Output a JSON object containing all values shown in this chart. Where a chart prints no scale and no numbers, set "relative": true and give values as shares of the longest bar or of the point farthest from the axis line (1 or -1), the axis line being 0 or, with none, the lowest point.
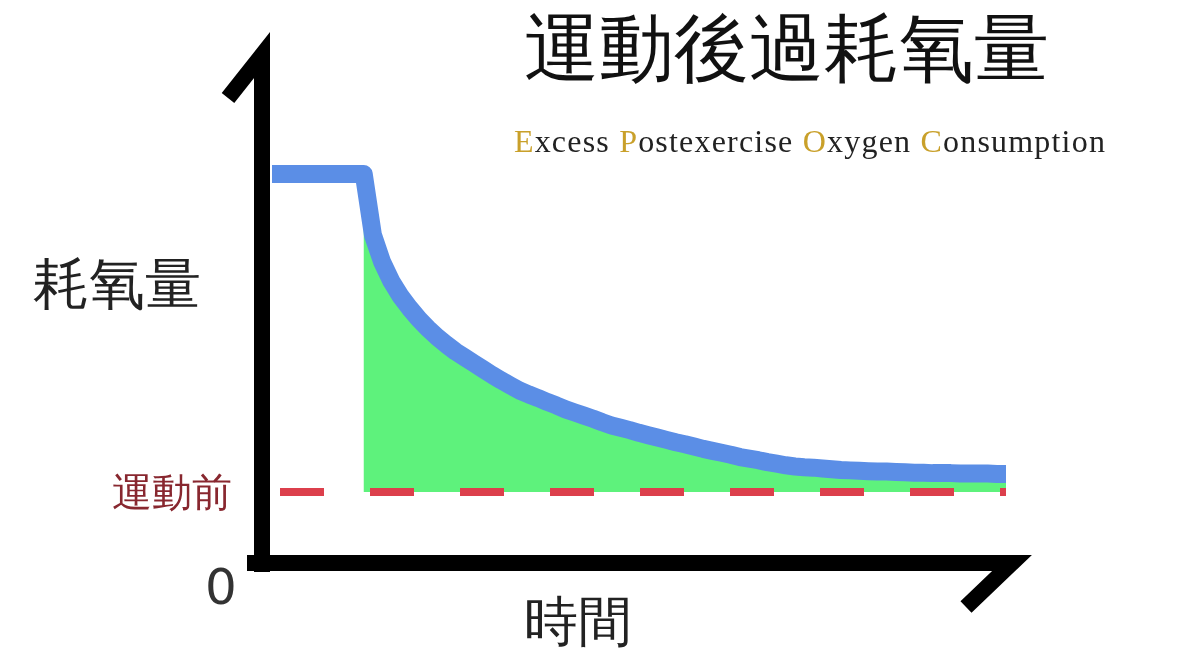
{
  "chart_data": {
    "type": "line",
    "title": "運動後過耗氧量",
    "subtitle": "Excess Postexercise Oxygen Consumption",
    "xlabel": "時間",
    "ylabel": "耗氧量",
    "relative": true,
    "annotations": [
      "0"
    ],
    "categories": [
      null,
      null,
      null,
      null,
      null,
      null,
      null,
      null,
      null,
      null,
      null,
      null,
      null,
      null,
      null,
      null,
      null,
      null,
      null,
      null,
      null,
      null,
      null,
      null,
      null,
      null,
      null,
      null,
      null,
      null,
      null,
      null,
      null,
      null,
      null,
      null,
      null,
      null,
      null,
      null,
      null,
      null,
      null,
      null,
      null,
      null,
      null,
      null,
      null,
      null,
      null,
      null,
      null,
      null,
      null,
      null,
      null,
      null,
      null,
      null,
      null,
      null,
      null,
      null,
      null,
      null,
      null,
      null,
      null,
      null,
      null,
      null,
      null,
      null,
      null,
      null,
      null,
      null,
      null,
      null,
      null
    ],
    "series": [
      {
        "type": "area",
        "color": "#5ef27c",
        "values": [
          null,
          null,
          null,
          null,
          null,
          null,
          null,
          null,
          null,
          null,
          1,
          0.844,
          0.775,
          0.726,
          0.688,
          0.657,
          0.629,
          0.605,
          0.583,
          0.564,
          0.546,
          0.531,
          0.516,
          0.501,
          0.486,
          0.472,
          0.459,
          0.446,
          0.436,
          0.427,
          0.417,
          0.408,
          0.398,
          0.39,
          0.382,
          0.374,
          0.365,
          0.357,
          0.351,
          0.345,
          0.338,
          0.332,
          0.326,
          0.32,
          0.314,
          0.309,
          0.303,
          0.297,
          0.292,
          0.287,
          0.282,
          0.276,
          0.272,
          0.268,
          0.263,
          0.259,
          0.255,
          0.252,
          0.25,
          0.249,
          0.247,
          0.245,
          0.243,
          0.242,
          0.241,
          0.24,
          0.239,
          0.239,
          0.238,
          0.237,
          0.236,
          0.236,
          0.235,
          0.235,
          0.235,
          0.234,
          0.234,
          0.234,
          0.234,
          0.233,
          0.233
        ]
      },
      {
        "color": "#5b8ee6",
        "values": [
          1,
          1,
          1,
          1,
          1,
          1,
          1,
          1,
          1,
          1,
          1,
          0.844,
          0.775,
          0.726,
          0.688,
          0.657,
          0.629,
          0.605,
          0.583,
          0.564,
          0.546,
          0.531,
          0.516,
          0.501,
          0.486,
          0.472,
          0.459,
          0.446,
          0.436,
          0.427,
          0.417,
          0.408,
          0.398,
          0.39,
          0.382,
          0.374,
          0.365,
          0.357,
          0.351,
          0.345,
          0.338,
          0.332,
          0.326,
          0.32,
          0.314,
          0.309,
          0.303,
          0.297,
          0.292,
          0.287,
          0.282,
          0.276,
          0.272,
          0.268,
          0.263,
          0.259,
          0.255,
          0.252,
          0.25,
          0.249,
          0.247,
          0.245,
          0.243,
          0.242,
          0.241,
          0.24,
          0.239,
          0.239,
          0.238,
          0.237,
          0.236,
          0.236,
          0.235,
          0.235,
          0.235,
          0.234,
          0.234,
          0.234,
          0.234,
          0.233,
          0.233
        ]
      }
    ],
    "ref_lines": [
      {
        "axis": "y",
        "value": 0.187,
        "label": "運動前",
        "color": "#dc3f4c",
        "line_style": "dashed"
      }
    ]
  }
}
